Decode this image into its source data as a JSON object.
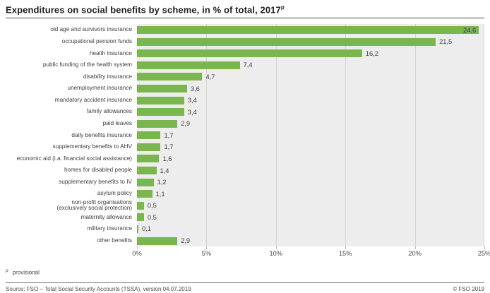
{
  "header": {
    "title": "Expenditures on social benefits by scheme, in % of total, 2017",
    "title_superscript": "p"
  },
  "chart_data": {
    "type": "bar",
    "orientation": "horizontal",
    "title": "Expenditures on social benefits by scheme, in % of total, 2017p",
    "categories": [
      "old age and survivors insurance",
      "occupational pension funds",
      "health insurance",
      "public funding of the health system",
      "disability insurance",
      "unemployment insurance",
      "mandatory accident insurance",
      "family allowances",
      "paid leaves",
      "daily benefits insurance",
      "supplementary benefits to AHV",
      "economic aid (i.a. financial social assistance)",
      "homes for disabled people",
      "supplementary benefits to IV",
      "asylum policy",
      "non-profit organisations\n(exclusively social protection)",
      "maternity allowance",
      "military insurance",
      "other benefits"
    ],
    "values": [
      24.6,
      21.5,
      16.2,
      7.4,
      4.7,
      3.6,
      3.4,
      3.4,
      2.9,
      1.7,
      1.7,
      1.6,
      1.4,
      1.2,
      1.1,
      0.5,
      0.5,
      0.1,
      2.9
    ],
    "value_labels": [
      "24,6",
      "21,5",
      "16,2",
      "7,4",
      "4,7",
      "3,6",
      "3,4",
      "3,4",
      "2,9",
      "1,7",
      "1,7",
      "1,6",
      "1,4",
      "1,2",
      "1,1",
      "0,5",
      "0,5",
      "0,1",
      "2,9"
    ],
    "xlabel_ticks": [
      "0%",
      "5%",
      "10%",
      "15%",
      "20%",
      "25%"
    ],
    "xlim": [
      0,
      25
    ],
    "grid": true,
    "legend": "none",
    "bar_color": "#7ab64e",
    "plot_bg": "#ededed",
    "grid_color": "#d4d4d4"
  },
  "footnote": {
    "marker": "p",
    "text": "provisional"
  },
  "footer": {
    "source": "Source: FSO – Total Social Security Accounts (TSSA), version 04.07.2019",
    "copyright": "© FSO 2019"
  }
}
